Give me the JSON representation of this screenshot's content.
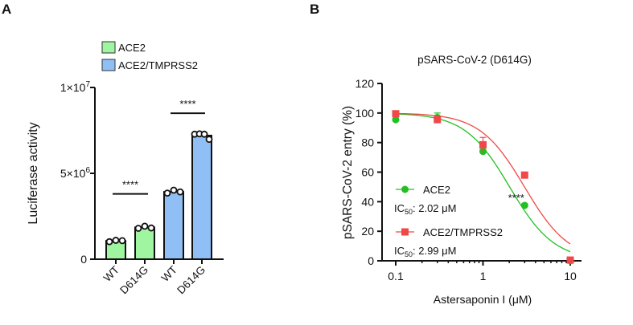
{
  "chart_data": [
    {
      "panel": "A",
      "type": "bar",
      "title": "",
      "ylabel": "Luciferase activity",
      "xlabel": "",
      "ylim": [
        0,
        10000000
      ],
      "yticks": [
        0,
        5000000,
        10000000
      ],
      "ytick_labels": [
        "0",
        "5×10",
        "1×10"
      ],
      "ytick_exponents": [
        "",
        "6",
        "7"
      ],
      "categories": [
        "WT",
        "D614G",
        "WT",
        "D614G"
      ],
      "legend": [
        {
          "name": "ACE2",
          "color": "#a0f5a0"
        },
        {
          "name": "ACE2/TMPRSS2",
          "color": "#90bff5"
        }
      ],
      "legend_placement": "top",
      "bars": [
        {
          "category": "WT",
          "group": "ACE2",
          "value": 1070000,
          "points": [
            1020000,
            1100000,
            1080000
          ]
        },
        {
          "category": "D614G",
          "group": "ACE2",
          "value": 1850000,
          "points": [
            1800000,
            1920000,
            1820000
          ]
        },
        {
          "category": "WT",
          "group": "ACE2/TMPRSS2",
          "value": 3920000,
          "points": [
            3850000,
            4020000,
            3920000
          ]
        },
        {
          "category": "D614G",
          "group": "ACE2/TMPRSS2",
          "value": 7200000,
          "points": [
            7280000,
            7300000,
            7280000,
            6980000
          ]
        }
      ],
      "annotations": [
        {
          "text": "****",
          "between": [
            0,
            1
          ],
          "level": 3800000
        },
        {
          "text": "****",
          "between": [
            2,
            3
          ],
          "level": 8500000
        }
      ]
    },
    {
      "panel": "B",
      "type": "line",
      "title": "pSARS-CoV-2 (D614G)",
      "xlabel": "Astersaponin I (μM)",
      "ylabel": "pSARS-CoV-2 entry  (%)",
      "xscale": "log",
      "xlim": [
        0.08,
        14
      ],
      "ylim": [
        0,
        120
      ],
      "xticks": [
        0.1,
        1,
        10
      ],
      "xtick_labels": [
        "0.1",
        "1",
        "10"
      ],
      "yticks": [
        0,
        20,
        40,
        60,
        80,
        100,
        120
      ],
      "ytick_labels": [
        "0",
        "20",
        "40",
        "60",
        "80",
        "100",
        "120"
      ],
      "legend_placement": "bottom-left",
      "series": [
        {
          "name": "ACE2",
          "color": "#22c022",
          "marker": "circle",
          "ic50_label": "IC",
          "ic50_sub": "50",
          "ic50_text": ": 2.02 μM",
          "ic50": 2.02,
          "hill": 1.7,
          "x": [
            0.1,
            0.3,
            1,
            3,
            10
          ],
          "y": [
            95.5,
            97,
            74,
            37.5,
            0
          ],
          "err": [
            2.5,
            3,
            1.5,
            1,
            0.5
          ]
        },
        {
          "name": "ACE2/TMPRSS2",
          "color": "#f04848",
          "marker": "square",
          "ic50_label": "IC",
          "ic50_sub": "50",
          "ic50_text": ": 2.99 μM",
          "ic50": 2.99,
          "hill": 1.7,
          "x": [
            0.1,
            0.3,
            1,
            3,
            10
          ],
          "y": [
            99.5,
            95.5,
            78.5,
            58,
            0.5
          ],
          "err": [
            0.5,
            1,
            5,
            1,
            0.5
          ]
        }
      ],
      "annotations": [
        {
          "text": "****",
          "x": 2.3,
          "y": 45
        }
      ]
    }
  ],
  "panel_labels": [
    "A",
    "B"
  ]
}
